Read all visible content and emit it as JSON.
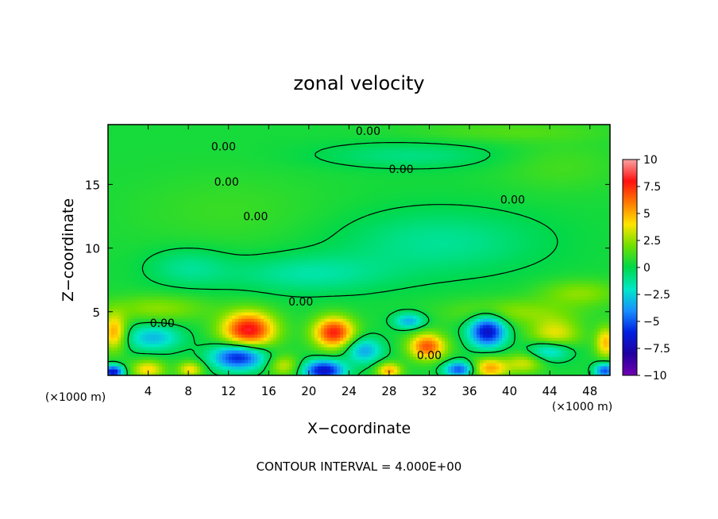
{
  "chart_data": {
    "type": "heatmap",
    "title": "zonal velocity",
    "xlabel": "X−coordinate",
    "ylabel": "Z−coordinate",
    "x_unit_left": "(×1000 m)",
    "x_unit_right": "(×1000 m)",
    "footer": "CONTOUR INTERVAL = 4.000E+00",
    "xlim": [
      0,
      50
    ],
    "ylim": [
      0,
      19.7
    ],
    "x_ticks": [
      4,
      8,
      12,
      16,
      20,
      24,
      28,
      32,
      36,
      40,
      44,
      48
    ],
    "x_tick_labels": [
      "4",
      "8",
      "12",
      "16",
      "20",
      "24",
      "28",
      "32",
      "36",
      "40",
      "44",
      "48"
    ],
    "y_ticks": [
      5,
      10,
      15
    ],
    "y_tick_labels": [
      "5",
      "10",
      "15"
    ],
    "colorbar": {
      "min": -10,
      "max": 10,
      "ticks": [
        10,
        7.5,
        5,
        2.5,
        0,
        -2.5,
        -5,
        -7.5,
        -10
      ],
      "tick_labels": [
        "10",
        "7.5",
        "5",
        "2.5",
        "0",
        "−2.5",
        "−5",
        "−7.5",
        "−10"
      ],
      "colors": [
        "#f7a3a3",
        "#ff1010",
        "#ff7a00",
        "#ffe400",
        "#70e000",
        "#00d84a",
        "#00e8c8",
        "#1890ff",
        "#0020e0",
        "#2000a0",
        "#7000b0"
      ]
    },
    "contour_labels": [
      {
        "text": "0.00",
        "x": 25.9,
        "z": 19.2
      },
      {
        "text": "0.00",
        "x": 11.5,
        "z": 18.0
      },
      {
        "text": "0.00",
        "x": 29.2,
        "z": 16.2
      },
      {
        "text": "0.00",
        "x": 11.8,
        "z": 15.2
      },
      {
        "text": "0.00",
        "x": 40.3,
        "z": 13.8
      },
      {
        "text": "0.00",
        "x": 14.7,
        "z": 12.5
      },
      {
        "text": "0.00",
        "x": 19.2,
        "z": 5.8
      },
      {
        "text": "0.00",
        "x": 5.4,
        "z": 4.1
      },
      {
        "text": "0.00",
        "x": 32.0,
        "z": 1.6
      }
    ],
    "features": [
      {
        "x": 14.0,
        "z": 3.6,
        "value": 8.0,
        "rx": 2.6,
        "rz": 1.4
      },
      {
        "x": 22.5,
        "z": 3.4,
        "value": 7.5,
        "rx": 2.0,
        "rz": 1.2
      },
      {
        "x": 31.8,
        "z": 2.3,
        "value": 6.5,
        "rx": 1.8,
        "rz": 1.0
      },
      {
        "x": 0.6,
        "z": 3.4,
        "value": 5.0,
        "rx": 1.2,
        "rz": 1.4
      },
      {
        "x": 49.6,
        "z": 2.6,
        "value": 4.5,
        "rx": 1.0,
        "rz": 1.2
      },
      {
        "x": 44.5,
        "z": 3.2,
        "value": 3.5,
        "rx": 2.5,
        "rz": 1.3
      },
      {
        "x": 38.0,
        "z": 0.6,
        "value": 5.0,
        "rx": 1.8,
        "rz": 0.8
      },
      {
        "x": 28.0,
        "z": 0.4,
        "value": 5.0,
        "rx": 1.2,
        "rz": 0.6
      },
      {
        "x": 4.0,
        "z": 0.5,
        "value": 4.0,
        "rx": 1.6,
        "rz": 0.7
      },
      {
        "x": 8.2,
        "z": 0.5,
        "value": 4.0,
        "rx": 1.2,
        "rz": 0.6
      },
      {
        "x": 13.0,
        "z": 1.5,
        "value": -7.0,
        "rx": 2.6,
        "rz": 1.0
      },
      {
        "x": 37.8,
        "z": 3.5,
        "value": -7.5,
        "rx": 1.8,
        "rz": 1.2
      },
      {
        "x": 21.5,
        "z": 0.4,
        "value": -7.5,
        "rx": 2.0,
        "rz": 0.8
      },
      {
        "x": 0.5,
        "z": 0.3,
        "value": -8.0,
        "rx": 1.0,
        "rz": 0.5
      },
      {
        "x": 35.0,
        "z": 0.5,
        "value": -6.0,
        "rx": 1.5,
        "rz": 0.6
      },
      {
        "x": 49.5,
        "z": 0.4,
        "value": -6.0,
        "rx": 1.0,
        "rz": 0.6
      },
      {
        "x": 4.5,
        "z": 3.0,
        "value": -3.5,
        "rx": 2.8,
        "rz": 1.0
      },
      {
        "x": 25.5,
        "z": 2.0,
        "value": -4.0,
        "rx": 1.8,
        "rz": 1.0
      },
      {
        "x": 44.0,
        "z": 2.0,
        "value": -4.0,
        "rx": 2.2,
        "rz": 0.8
      },
      {
        "x": 30.0,
        "z": 4.3,
        "value": -4.0,
        "rx": 1.5,
        "rz": 0.6
      },
      {
        "x": 17.5,
        "z": 0.8,
        "value": 3.0,
        "rx": 1.5,
        "rz": 0.8
      },
      {
        "x": 41.5,
        "z": 1.0,
        "value": 3.0,
        "rx": 1.8,
        "rz": 0.8
      },
      {
        "x": 20.0,
        "z": 8.0,
        "value": -1.8,
        "rx": 8.0,
        "rz": 1.5
      },
      {
        "x": 8.0,
        "z": 8.5,
        "value": -1.5,
        "rx": 4.0,
        "rz": 1.5
      },
      {
        "x": 33.0,
        "z": 10.5,
        "value": -1.6,
        "rx": 10.0,
        "rz": 2.5
      },
      {
        "x": 5.0,
        "z": 5.3,
        "value": 2.0,
        "rx": 5.0,
        "rz": 1.0
      },
      {
        "x": 40.0,
        "z": 5.0,
        "value": 2.0,
        "rx": 6.0,
        "rz": 1.0
      },
      {
        "x": 47.0,
        "z": 6.5,
        "value": 2.0,
        "rx": 4.0,
        "rz": 1.0
      },
      {
        "x": 30.0,
        "z": 17.3,
        "value": -1.3,
        "rx": 9.0,
        "rz": 1.0
      },
      {
        "x": 12.0,
        "z": 13.0,
        "value": 0.6,
        "rx": 10.0,
        "rz": 3.0
      },
      {
        "x": 45.0,
        "z": 16.5,
        "value": 0.8,
        "rx": 6.0,
        "rz": 2.0
      },
      {
        "x": 40.0,
        "z": 19.2,
        "value": 1.0,
        "rx": 10.0,
        "rz": 0.8
      }
    ]
  }
}
